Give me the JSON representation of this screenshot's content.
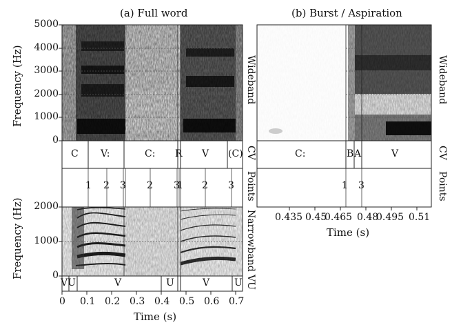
{
  "panel_a": {
    "title": "(a) Full word",
    "wideband": {
      "ylabel": "Frequency (Hz)",
      "yticks": [
        "0",
        "1000",
        "2000",
        "3000",
        "4000",
        "5000"
      ]
    },
    "cv_tier": [
      "C",
      "V:",
      "C:",
      "R",
      "V",
      "(C)"
    ],
    "points_tier": [
      "1",
      "2",
      "3",
      "2",
      "3",
      "1",
      "2",
      "3"
    ],
    "narrowband": {
      "ylabel": "Frequency (Hz)",
      "yticks": [
        "0",
        "1000",
        "2000"
      ]
    },
    "voicing_tier": [
      "VU",
      "V",
      "U",
      "V",
      "U"
    ],
    "xticks": [
      "0",
      "0.1",
      "0.2",
      "0.3",
      "0.4",
      "0.5",
      "0.6",
      "0.7"
    ],
    "xlabel": "Time (s)"
  },
  "panel_b": {
    "title": "(b) Burst / Aspiration",
    "cv_tier": [
      "C:",
      "B",
      "A",
      "V"
    ],
    "points_tier": [
      "1",
      "3"
    ],
    "xticks": [
      "0.435",
      "0.45",
      "0.465",
      "0.48",
      "0.495",
      "0.51"
    ],
    "xlabel": "Time (s)"
  },
  "tier_labels": {
    "wideband": "Wideband",
    "cv": "CV",
    "points": "Points",
    "narrowband": "Narrowband",
    "voicing": "VU"
  }
}
